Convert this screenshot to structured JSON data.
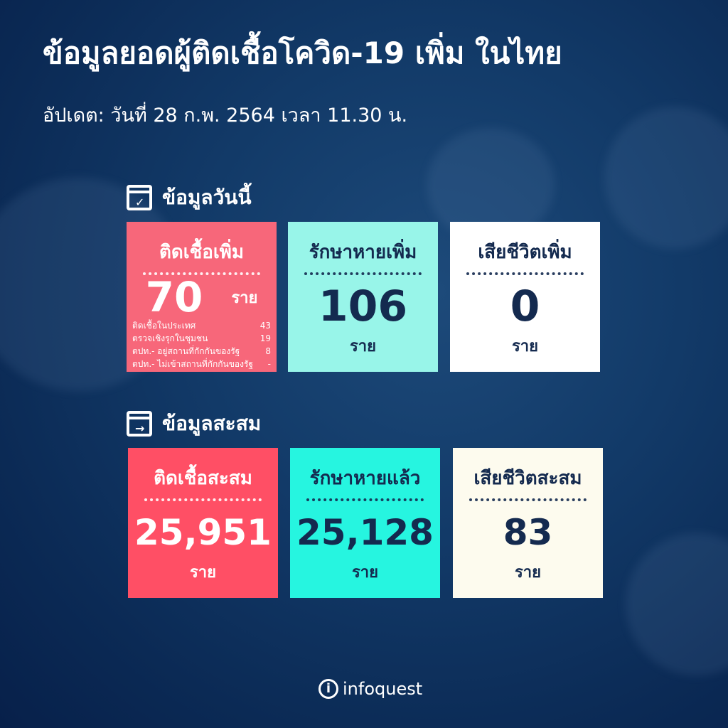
{
  "title": "ข้อมูลยอดผู้ติดเชื้อโควิด-19 เพิ่ม ในไทย",
  "updated": "อัปเดต: วันที่ 28 ก.พ. 2564 เวลา 11.30 น.",
  "today": {
    "heading": "ข้อมูลวันนี้",
    "icon": "calendar-check-icon",
    "cards": [
      {
        "label": "ติดเชื้อเพิ่ม",
        "value": "70",
        "unit": "ราย",
        "color": "#f7677a",
        "details": [
          {
            "label": "ติดเชื้อในประเทศ",
            "value": "43"
          },
          {
            "label": "ตรวจเชิงรุกในชุมชน",
            "value": "19"
          },
          {
            "label": "ตปท.- อยู่สถานที่กักกันของรัฐ",
            "value": "8"
          },
          {
            "label": "ตปท.-  ไม่เข้าสถานที่กักกันของรัฐ",
            "value": "-"
          }
        ]
      },
      {
        "label": "รักษาหายเพิ่ม",
        "value": "106",
        "unit": "ราย",
        "color": "#98f5e9"
      },
      {
        "label": "เสียชีวิตเพิ่ม",
        "value": "0",
        "unit": "ราย",
        "color": "#ffffff"
      }
    ]
  },
  "cumulative": {
    "heading": "ข้อมูลสะสม",
    "icon": "calendar-import-icon",
    "cards": [
      {
        "label": "ติดเชื้อสะสม",
        "value": "25,951",
        "unit": "ราย",
        "color": "#ff4f65"
      },
      {
        "label": "รักษาหายแล้ว",
        "value": "25,128",
        "unit": "ราย",
        "color": "#26f5e0"
      },
      {
        "label": "เสียชีวิตสะสม",
        "value": "83",
        "unit": "ราย",
        "color": "#fdfbee"
      }
    ]
  },
  "logo": "infoquest"
}
